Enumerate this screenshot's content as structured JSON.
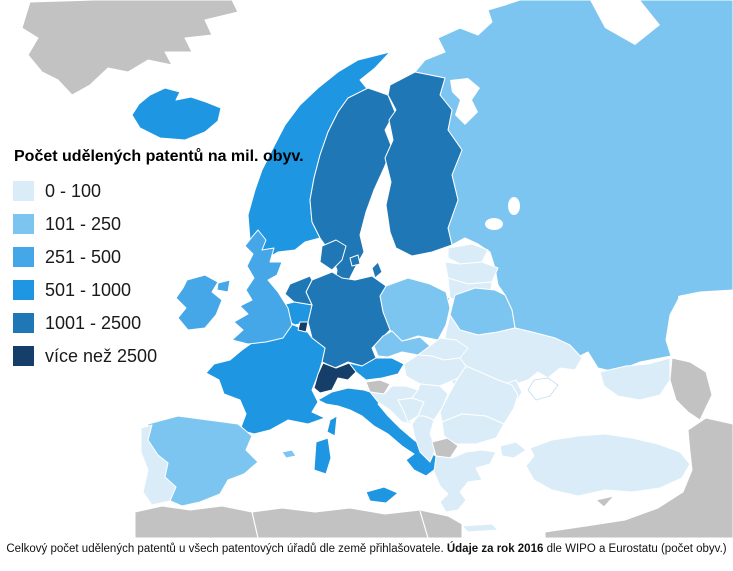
{
  "legend": {
    "title": "Počet udělených patentů na mil. obyv.",
    "items": [
      {
        "label": "0 - 100",
        "color": "#d9ecf8"
      },
      {
        "label": "101 - 250",
        "color": "#7dc5f1"
      },
      {
        "label": "251 - 500",
        "color": "#45a6e8"
      },
      {
        "label": "501 - 1000",
        "color": "#1e96e2"
      },
      {
        "label": "1001 - 2500",
        "color": "#1f77b5"
      },
      {
        "label": "více než 2500",
        "color": "#153f69"
      }
    ]
  },
  "map": {
    "no_data_color": "#c2c2c2",
    "sea_color": "#ffffff",
    "border_color": "#ffffff",
    "country_categories": {
      "iceland": "501 - 1000",
      "norway": "501 - 1000",
      "sweden": "1001 - 2500",
      "gotland": "1001 - 2500",
      "finland": "1001 - 2500",
      "denmark": "1001 - 2500",
      "denmark-islands": "1001 - 2500",
      "estonia": "0 - 100",
      "latvia": "0 - 100",
      "lithuania": "0 - 100",
      "kaliningrad": "101 - 250",
      "russia": "101 - 250",
      "belarus": "101 - 250",
      "ukraine": "0 - 100",
      "moldova": "0 - 100",
      "poland": "101 - 250",
      "germany": "1001 - 2500",
      "netherlands": "1001 - 2500",
      "belgium": "501 - 1000",
      "luxembourg": "více než 2500",
      "france": "501 - 1000",
      "corsica": "501 - 1000",
      "switzerland": "více než 2500",
      "austria": "501 - 1000",
      "czechia": "101 - 250",
      "slovakia": "0 - 100",
      "hungary": "0 - 100",
      "slovenia": "no-data",
      "croatia": "0 - 100",
      "bosnia": "0 - 100",
      "serbia": "0 - 100",
      "albania": "0 - 100",
      "macedonia": "no-data",
      "greece": "0 - 100",
      "crete": "0 - 100",
      "bulgaria": "0 - 100",
      "romania": "0 - 100",
      "italy": "501 - 1000",
      "sicily": "501 - 1000",
      "sardinia": "501 - 1000",
      "balearics": "101 - 250",
      "spain": "101 - 250",
      "portugal": "0 - 100",
      "uk": "251 - 500",
      "northern-ireland": "251 - 500",
      "ireland": "251 - 500",
      "turkey": "0 - 100",
      "turkey-thrace": "0 - 100",
      "caucasus": "0 - 100",
      "cyprus": "no-data",
      "greenland": "no-data",
      "north-africa": "no-data",
      "middle-east": "no-data",
      "azerbaijan": "no-data",
      "crimea": "sea"
    }
  },
  "caption": {
    "regular1": "Celkový počet udělených patentů u všech patentových úřadů dle země přihlašovatele. ",
    "bold": "Údaje za rok 2016",
    "regular2": " dle WIPO a Eurostatu (počet obyv.)"
  }
}
